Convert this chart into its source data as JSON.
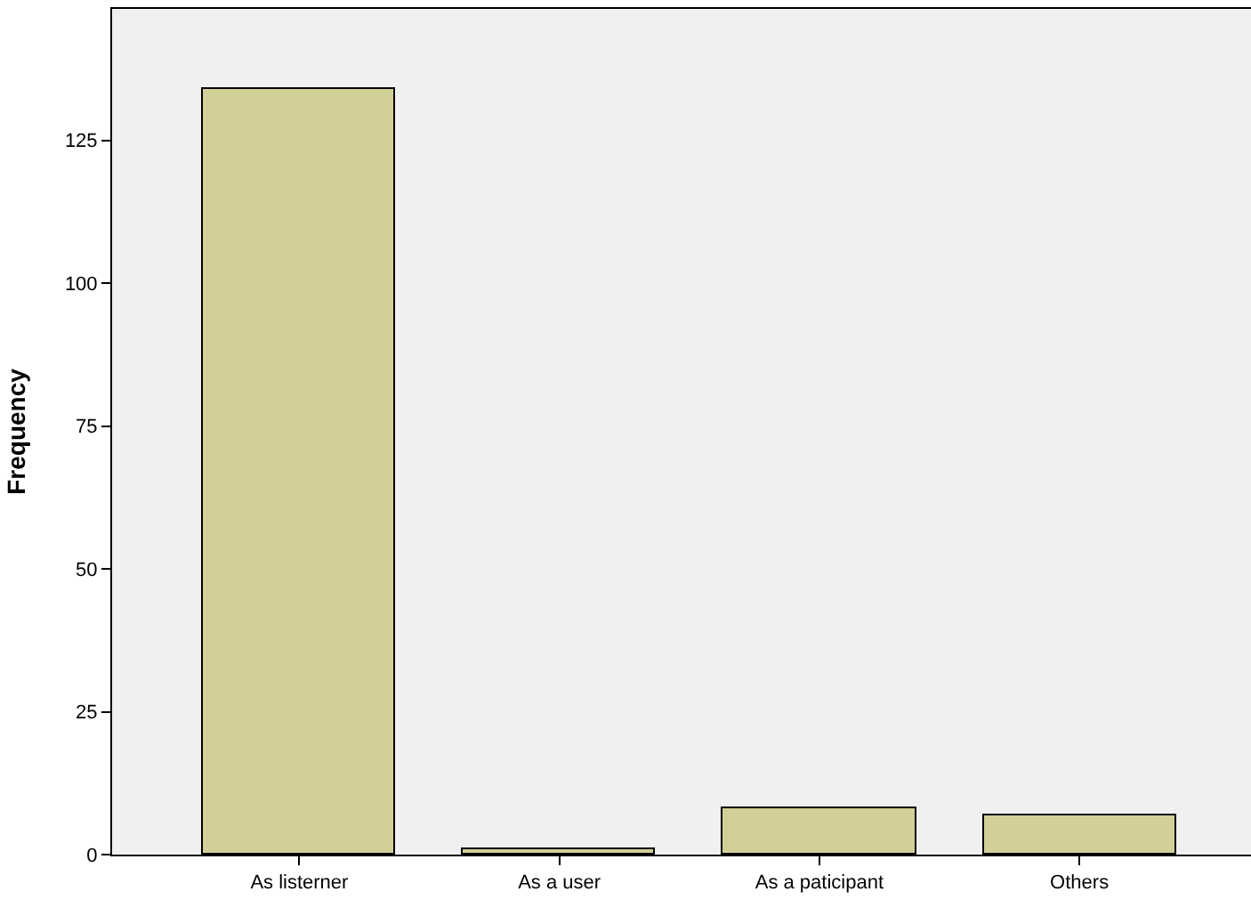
{
  "chart_data": {
    "type": "bar",
    "ylabel": "Frequency",
    "categories": [
      "As listerner",
      "As a user",
      "As a paticipant",
      "Others"
    ],
    "values": [
      134,
      1,
      8,
      7
    ],
    "color": "#d3cf98",
    "ylim": [
      0,
      148
    ],
    "yticks": [
      0,
      25,
      50,
      75,
      100,
      125
    ],
    "grid": false
  }
}
